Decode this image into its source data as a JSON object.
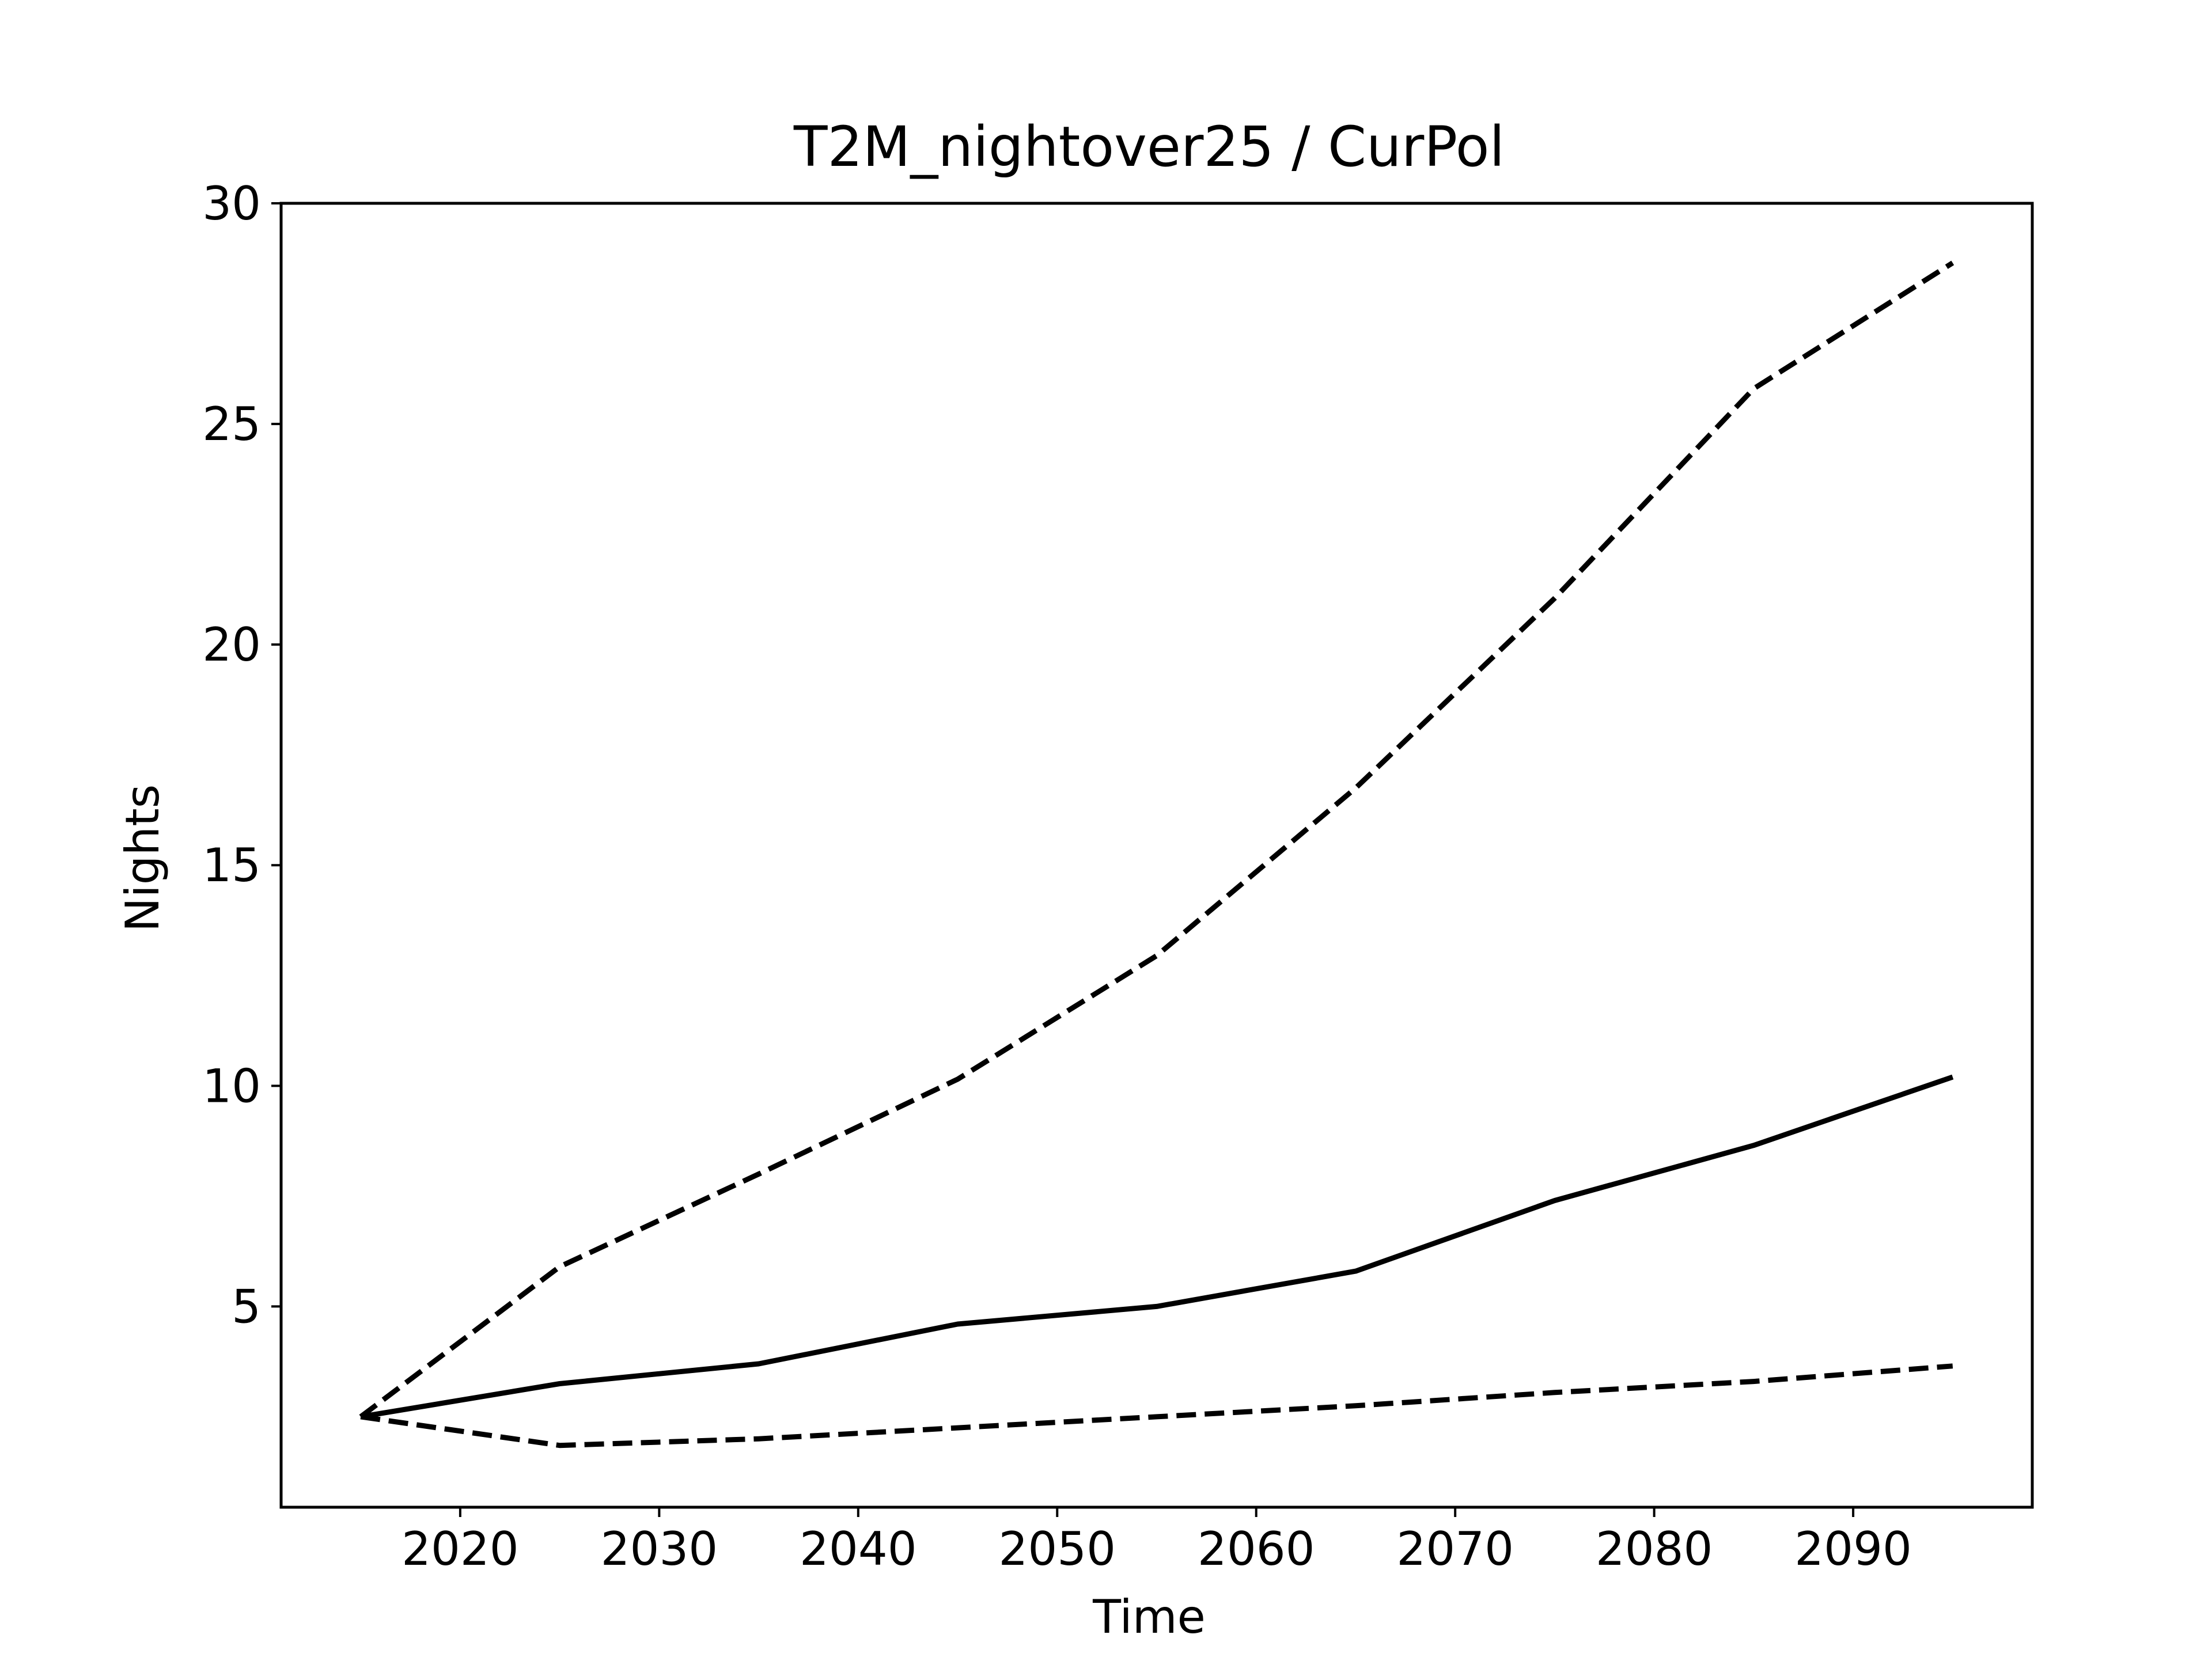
{
  "chart_data": {
    "type": "line",
    "title": "T2M_nightover25 / CurPol",
    "xlabel": "Time",
    "ylabel": "Nights",
    "xlim": [
      2011,
      2099
    ],
    "ylim": [
      0.45,
      30
    ],
    "xticks": [
      2020,
      2030,
      2040,
      2050,
      2060,
      2070,
      2080,
      2090
    ],
    "yticks": [
      5,
      10,
      15,
      20,
      25,
      30
    ],
    "grid": false,
    "legend": "none",
    "x": [
      2015,
      2025,
      2035,
      2045,
      2055,
      2065,
      2075,
      2085,
      2095
    ],
    "series": [
      {
        "style": "solid",
        "color": "#000000",
        "values": [
          2.5,
          3.25,
          3.7,
          4.6,
          5.0,
          5.8,
          7.4,
          8.65,
          10.2
        ]
      },
      {
        "style": "dashed",
        "color": "#000000",
        "values": [
          2.5,
          5.9,
          8.0,
          10.15,
          12.95,
          16.75,
          21.05,
          25.8,
          28.65
        ]
      },
      {
        "style": "dashed",
        "color": "#000000",
        "values": [
          2.5,
          1.85,
          2.0,
          2.25,
          2.5,
          2.75,
          3.05,
          3.3,
          3.65
        ]
      }
    ]
  }
}
